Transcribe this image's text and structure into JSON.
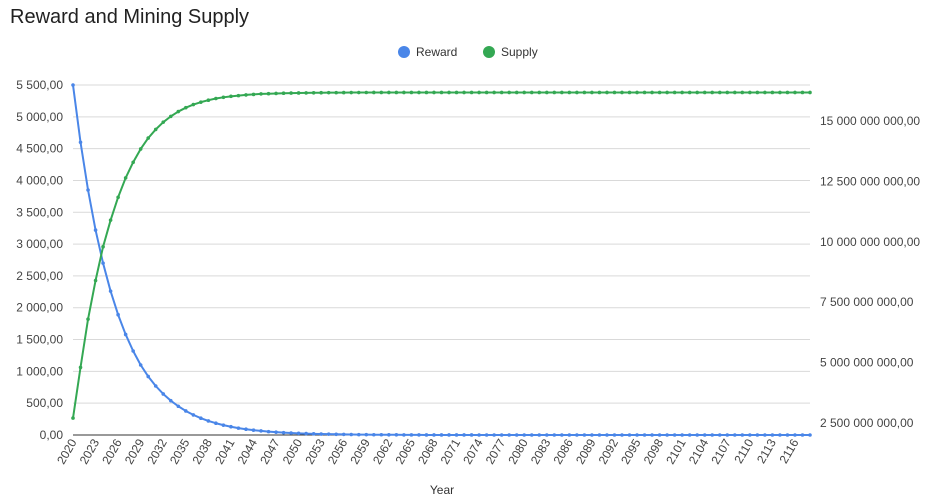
{
  "chart_data": {
    "type": "line",
    "title": "Reward and Mining Supply",
    "xlabel": "Year",
    "ylabel": "",
    "y2label": "",
    "legend_position": "top-center",
    "grid": true,
    "x_range": [
      2020,
      2118
    ],
    "ylim": [
      0,
      5500
    ],
    "y2lim": [
      2000000000,
      16500000000
    ],
    "x_ticks": [
      2020,
      2023,
      2026,
      2029,
      2032,
      2035,
      2038,
      2041,
      2044,
      2047,
      2050,
      2053,
      2056,
      2059,
      2062,
      2065,
      2068,
      2071,
      2074,
      2077,
      2080,
      2083,
      2086,
      2089,
      2092,
      2095,
      2098,
      2101,
      2104,
      2107,
      2110,
      2113,
      2116
    ],
    "y_ticks": [
      0,
      500,
      1000,
      1500,
      2000,
      2500,
      3000,
      3500,
      4000,
      4500,
      5000,
      5500
    ],
    "y_tick_labels": [
      "0,00",
      "500,00",
      "1 000,00",
      "1 500,00",
      "2 000,00",
      "2 500,00",
      "3 000,00",
      "3 500,00",
      "4 000,00",
      "4 500,00",
      "5 000,00",
      "5 500,00"
    ],
    "y2_ticks": [
      2500000000,
      5000000000,
      7500000000,
      10000000000,
      12500000000,
      15000000000
    ],
    "y2_tick_labels": [
      "2 500 000 000,00",
      "5 000 000 000,00",
      "7 500 000 000,00",
      "10 000 000 000,00",
      "12 500 000 000,00",
      "15 000 000 000,00"
    ],
    "series": [
      {
        "name": "Reward",
        "axis": "left",
        "color": "#4a86e8",
        "x": [
          2020,
          2021,
          2022,
          2023,
          2024,
          2025,
          2026,
          2027,
          2028,
          2029,
          2030,
          2031,
          2032,
          2033,
          2034,
          2035,
          2036,
          2037,
          2038,
          2039,
          2040,
          2041,
          2042,
          2043,
          2044,
          2045,
          2046,
          2047,
          2048,
          2049,
          2050,
          2051,
          2052,
          2053,
          2054,
          2055,
          2056,
          2057,
          2058,
          2059,
          2060,
          2061,
          2062,
          2063,
          2064,
          2065,
          2066,
          2067,
          2068,
          2069,
          2070,
          2071,
          2072,
          2073,
          2074,
          2075,
          2076,
          2077,
          2078,
          2079,
          2080,
          2081,
          2082,
          2083,
          2084,
          2085,
          2086,
          2087,
          2088,
          2089,
          2090,
          2091,
          2092,
          2093,
          2094,
          2095,
          2096,
          2097,
          2098,
          2099,
          2100,
          2101,
          2102,
          2103,
          2104,
          2105,
          2106,
          2107,
          2108,
          2109,
          2110,
          2111,
          2112,
          2113,
          2114,
          2115,
          2116,
          2117,
          2118
        ],
        "values": [
          5500,
          4600,
          3850,
          3220,
          2700,
          2260,
          1890,
          1580,
          1320,
          1100,
          920,
          770,
          645,
          540,
          452,
          378,
          316,
          264,
          221,
          185,
          155,
          130,
          108,
          91,
          76,
          64,
          53,
          45,
          37,
          31,
          26,
          22,
          18,
          15,
          13,
          11,
          9,
          8,
          6,
          5,
          4,
          4,
          3,
          3,
          2,
          2,
          2,
          1,
          1,
          1,
          1,
          1,
          1,
          1,
          0,
          0,
          0,
          0,
          0,
          0,
          0,
          0,
          0,
          0,
          0,
          0,
          0,
          0,
          0,
          0,
          0,
          0,
          0,
          0,
          0,
          0,
          0,
          0,
          0,
          0,
          0,
          0,
          0,
          0,
          0,
          0,
          0,
          0,
          0,
          0,
          0,
          0,
          0,
          0,
          0,
          0,
          0,
          0,
          0
        ]
      },
      {
        "name": "Supply",
        "axis": "right",
        "color": "#34a853",
        "x": [
          2020,
          2021,
          2022,
          2023,
          2024,
          2025,
          2026,
          2027,
          2028,
          2029,
          2030,
          2031,
          2032,
          2033,
          2034,
          2035,
          2036,
          2037,
          2038,
          2039,
          2040,
          2041,
          2042,
          2043,
          2044,
          2045,
          2046,
          2047,
          2048,
          2049,
          2050,
          2051,
          2052,
          2053,
          2054,
          2055,
          2056,
          2057,
          2058,
          2059,
          2060,
          2061,
          2062,
          2063,
          2064,
          2065,
          2066,
          2067,
          2068,
          2069,
          2070,
          2071,
          2072,
          2073,
          2074,
          2075,
          2076,
          2077,
          2078,
          2079,
          2080,
          2081,
          2082,
          2083,
          2084,
          2085,
          2086,
          2087,
          2088,
          2089,
          2090,
          2091,
          2092,
          2093,
          2094,
          2095,
          2096,
          2097,
          2098,
          2099,
          2100,
          2101,
          2102,
          2103,
          2104,
          2105,
          2106,
          2107,
          2108,
          2109,
          2110,
          2111,
          2112,
          2113,
          2114,
          2115,
          2116,
          2117,
          2118
        ],
        "values": [
          2700000000,
          4800000000,
          6800000000,
          8400000000,
          9800000000,
          10900000000,
          11850000000,
          12650000000,
          13300000000,
          13850000000,
          14300000000,
          14660000000,
          14960000000,
          15200000000,
          15400000000,
          15560000000,
          15690000000,
          15790000000,
          15870000000,
          15940000000,
          15990000000,
          16030000000,
          16060000000,
          16090000000,
          16110000000,
          16130000000,
          16140000000,
          16150000000,
          16160000000,
          16165000000,
          16170000000,
          16174000000,
          16177000000,
          16180000000,
          16182000000,
          16184000000,
          16186000000,
          16187000000,
          16188000000,
          16189000000,
          16190000000,
          16190000000,
          16190000000,
          16190000000,
          16190000000,
          16190000000,
          16190000000,
          16190000000,
          16190000000,
          16190000000,
          16190000000,
          16190000000,
          16190000000,
          16190000000,
          16190000000,
          16190000000,
          16190000000,
          16190000000,
          16190000000,
          16190000000,
          16190000000,
          16190000000,
          16190000000,
          16190000000,
          16190000000,
          16190000000,
          16190000000,
          16190000000,
          16190000000,
          16190000000,
          16190000000,
          16190000000,
          16190000000,
          16190000000,
          16190000000,
          16190000000,
          16190000000,
          16190000000,
          16190000000,
          16190000000,
          16190000000,
          16190000000,
          16190000000,
          16190000000,
          16190000000,
          16190000000,
          16190000000,
          16190000000,
          16190000000,
          16190000000,
          16190000000,
          16190000000,
          16190000000,
          16190000000,
          16190000000,
          16190000000,
          16190000000,
          16190000000,
          16190000000
        ]
      }
    ]
  }
}
